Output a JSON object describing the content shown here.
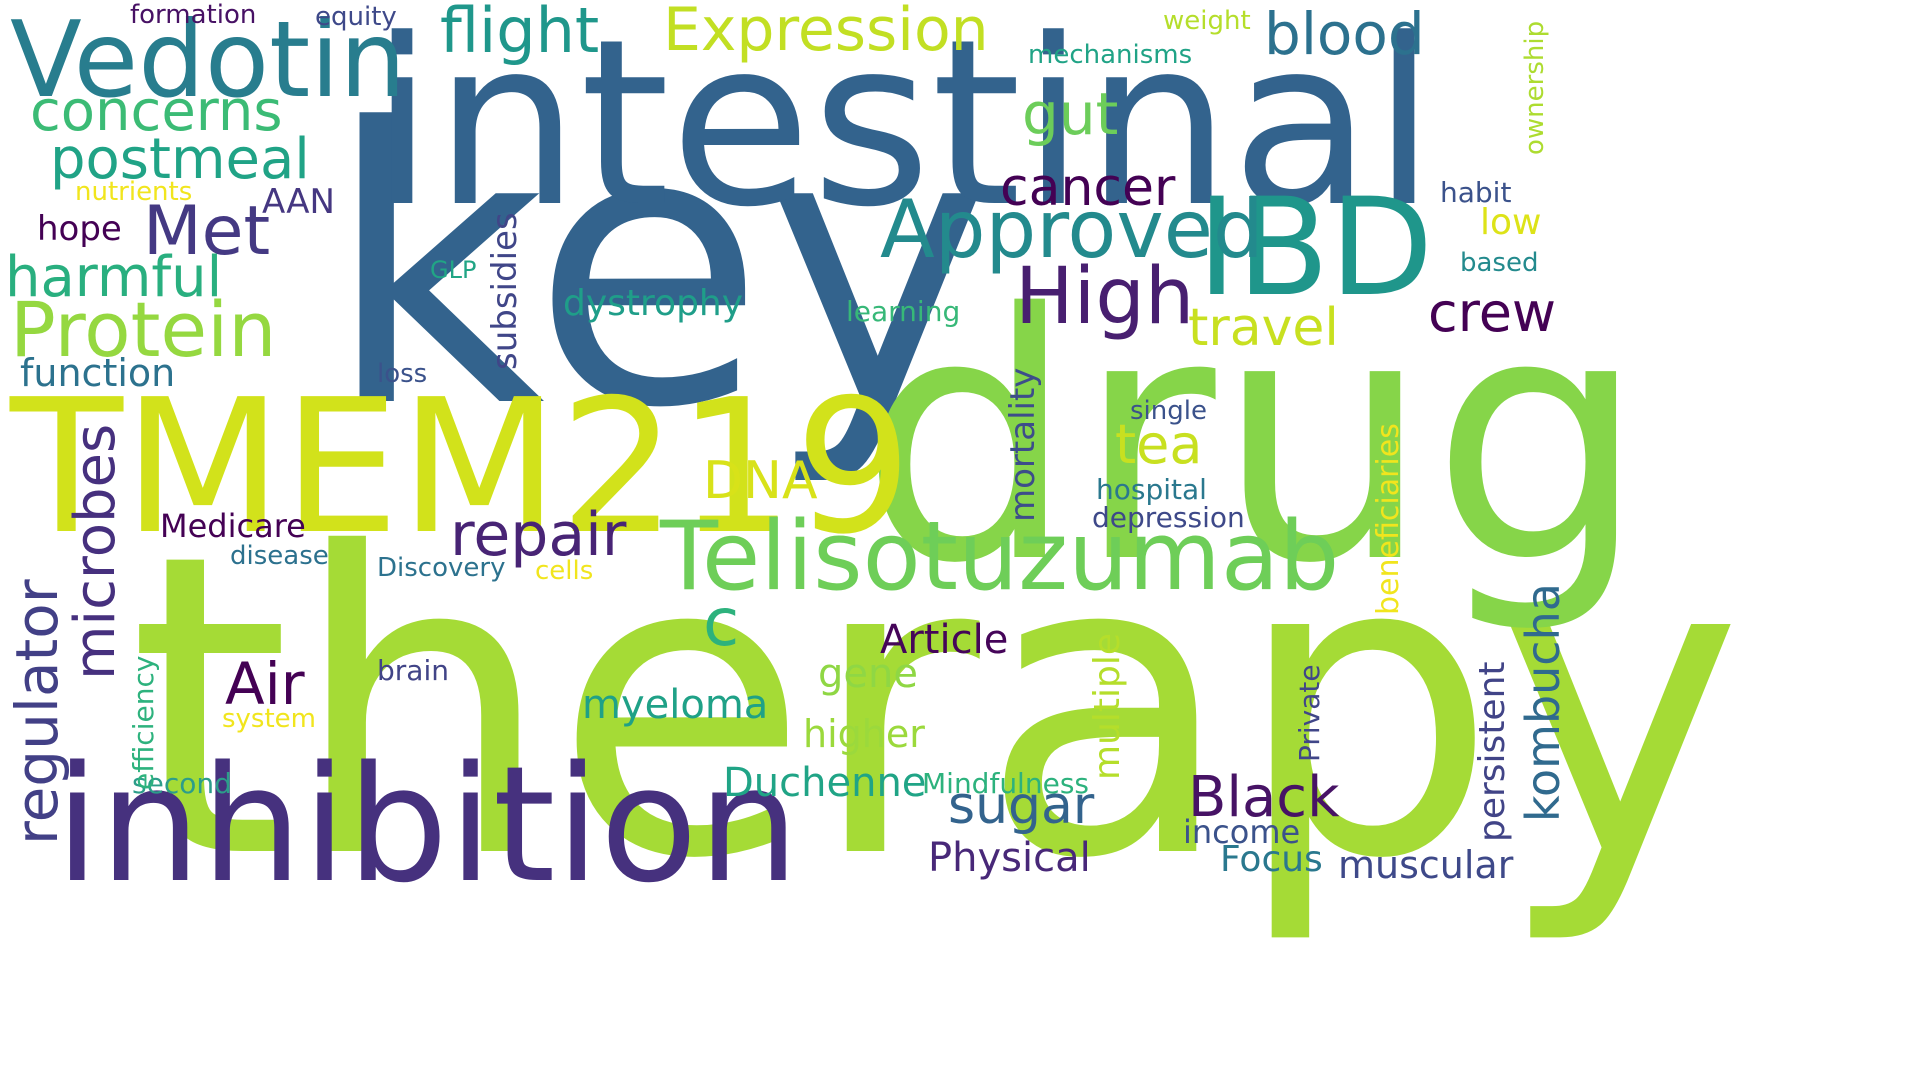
{
  "words": [
    {
      "text": "therapy",
      "color": "#a5db36"
    },
    {
      "text": "key",
      "color": "#33638d"
    },
    {
      "text": "drug",
      "color": "#86d549"
    },
    {
      "text": "intestinal",
      "color": "#33638d"
    },
    {
      "text": "TMEM219",
      "color": "#d2e21b"
    },
    {
      "text": "inhibition",
      "color": "#46317e"
    },
    {
      "text": "IBD",
      "color": "#1f968b"
    },
    {
      "text": "Vedotin",
      "color": "#287d8e"
    },
    {
      "text": "Telisotuzumab",
      "color": "#6ece58"
    },
    {
      "text": "Approved",
      "color": "#238a8d"
    },
    {
      "text": "High",
      "color": "#481f70"
    },
    {
      "text": "Protein",
      "color": "#95d840"
    },
    {
      "text": "flight",
      "color": "#1f978b"
    },
    {
      "text": "Expression",
      "color": "#c2df23"
    },
    {
      "text": "blood",
      "color": "#2c718e"
    },
    {
      "text": "concerns",
      "color": "#3bbb75"
    },
    {
      "text": "postmeal",
      "color": "#20a386"
    },
    {
      "text": "Met",
      "color": "#443983"
    },
    {
      "text": "harmful",
      "color": "#29af7f"
    },
    {
      "text": "gut",
      "color": "#6ccd5a"
    },
    {
      "text": "cancer",
      "color": "#440154"
    },
    {
      "text": "travel",
      "color": "#c8e020"
    },
    {
      "text": "crew",
      "color": "#440154"
    },
    {
      "text": "tea",
      "color": "#c8e020"
    },
    {
      "text": "DNA",
      "color": "#d8e219"
    },
    {
      "text": "repair",
      "color": "#482475"
    },
    {
      "text": "regulator",
      "color": "#424086"
    },
    {
      "text": "microbes",
      "color": "#46307e"
    },
    {
      "text": "Air",
      "color": "#440154"
    },
    {
      "text": "kombucha",
      "color": "#306a8e"
    },
    {
      "text": "Black",
      "color": "#471365"
    },
    {
      "text": "sugar",
      "color": "#33638d"
    },
    {
      "text": "myeloma",
      "color": "#1fa187"
    },
    {
      "text": "Duchenne",
      "color": "#20a486"
    },
    {
      "text": "Physical",
      "color": "#482878"
    },
    {
      "text": "muscular",
      "color": "#3e4989"
    },
    {
      "text": "Article",
      "color": "#450559"
    },
    {
      "text": "gene",
      "color": "#8fd744"
    },
    {
      "text": "higher",
      "color": "#9bd93c"
    },
    {
      "text": "dystrophy",
      "color": "#1f9e89"
    },
    {
      "text": "function",
      "color": "#2c728e"
    },
    {
      "text": "mortality",
      "color": "#3d4d8a"
    },
    {
      "text": "multiple",
      "color": "#b5de2b"
    },
    {
      "text": "subsidies",
      "color": "#404688"
    },
    {
      "text": "beneficiaries",
      "color": "#f1e51d"
    },
    {
      "text": "persistent",
      "color": "#414487"
    },
    {
      "text": "Focus",
      "color": "#2a788e"
    },
    {
      "text": "income",
      "color": "#3b528b"
    },
    {
      "text": "Medicare",
      "color": "#440154"
    },
    {
      "text": "c",
      "color": "#2db27d"
    },
    {
      "text": "hope",
      "color": "#440154"
    },
    {
      "text": "AAN",
      "color": "#453781"
    },
    {
      "text": "low",
      "color": "#dde318"
    },
    {
      "text": "habit",
      "color": "#3b528b"
    },
    {
      "text": "based",
      "color": "#238a8d"
    },
    {
      "text": "formation",
      "color": "#471164"
    },
    {
      "text": "equity",
      "color": "#3e4989"
    },
    {
      "text": "weight",
      "color": "#b5de2b"
    },
    {
      "text": "mechanisms",
      "color": "#20a386"
    },
    {
      "text": "ownership",
      "color": "#addc30"
    },
    {
      "text": "nutrients",
      "color": "#f1e51d"
    },
    {
      "text": "GLP",
      "color": "#21a585"
    },
    {
      "text": "learning",
      "color": "#37b878"
    },
    {
      "text": "loss",
      "color": "#3b528b"
    },
    {
      "text": "single",
      "color": "#3b528b"
    },
    {
      "text": "hospital",
      "color": "#2a788e"
    },
    {
      "text": "depression",
      "color": "#3e4989"
    },
    {
      "text": "disease",
      "color": "#2c718e"
    },
    {
      "text": "Discovery",
      "color": "#2c728e"
    },
    {
      "text": "cells",
      "color": "#f1e51d"
    },
    {
      "text": "brain",
      "color": "#414487"
    },
    {
      "text": "system",
      "color": "#f1e51d"
    },
    {
      "text": "efficiency",
      "color": "#2db27d"
    },
    {
      "text": "second",
      "color": "#2c9d8a"
    },
    {
      "text": "Mindfulness",
      "color": "#2db27d"
    },
    {
      "text": "Private",
      "color": "#404688"
    }
  ]
}
